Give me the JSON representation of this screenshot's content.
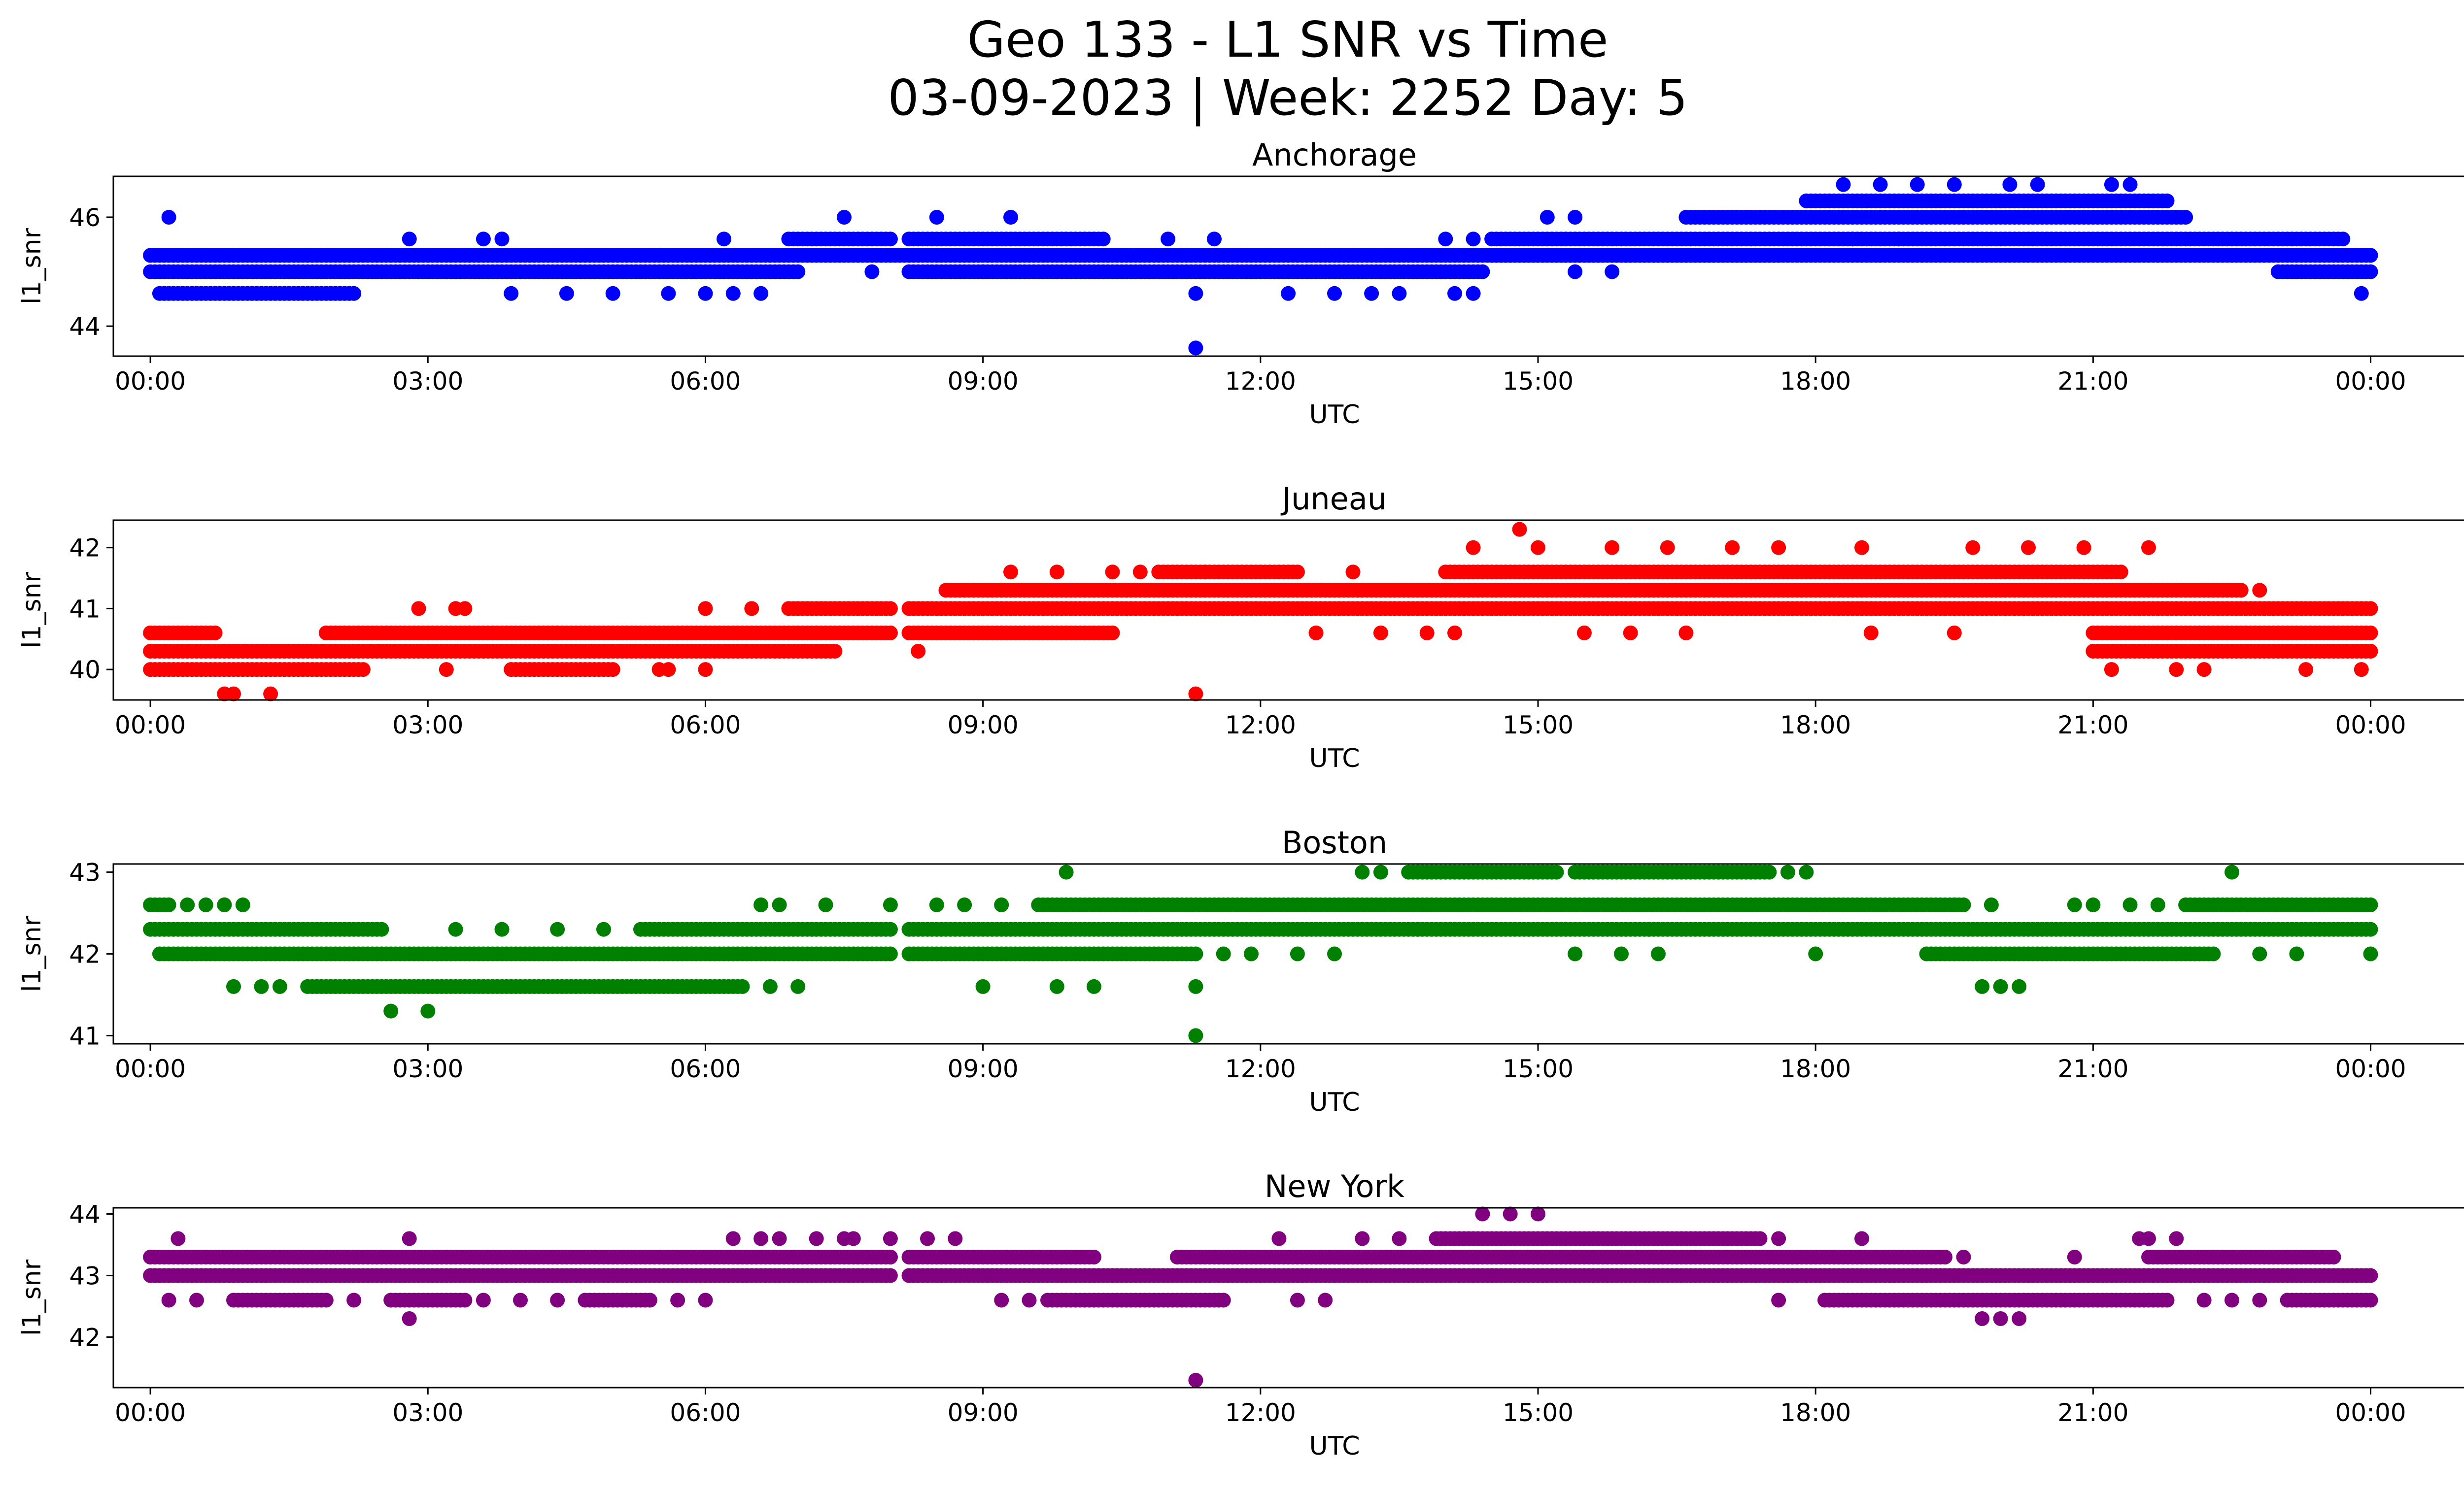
{
  "figure": {
    "title_line1": "Geo 133 - L1 SNR vs Time",
    "title_line2": "03-09-2023 | Week: 2252 Day: 5"
  },
  "chart_data": [
    {
      "type": "scatter",
      "title": "Anchorage",
      "xlabel": "UTC",
      "ylabel": "l1_snr",
      "color": "#0000ff",
      "xlim": [
        -0.4,
        26.0
      ],
      "ylim": [
        43.45,
        46.75
      ],
      "x_ticks": [
        "00:00",
        "03:00",
        "06:00",
        "09:00",
        "12:00",
        "15:00",
        "18:00",
        "21:00",
        "00:00"
      ],
      "y_ticks": [
        44,
        46
      ],
      "bands": [
        {
          "y": 45.3,
          "x_start": 0.0,
          "x_end": 24.0
        },
        {
          "y": 45.0,
          "x_start": 0.0,
          "x_end": 7.0
        },
        {
          "y": 45.0,
          "x_start": 8.2,
          "x_end": 14.4
        },
        {
          "y": 45.0,
          "x_start": 23.0,
          "x_end": 24.0
        },
        {
          "y": 44.6,
          "x_start": 0.1,
          "x_end": 2.2
        },
        {
          "y": 45.6,
          "x_start": 6.9,
          "x_end": 8.0
        },
        {
          "y": 45.6,
          "x_start": 8.2,
          "x_end": 10.3
        },
        {
          "y": 45.6,
          "x_start": 14.5,
          "x_end": 23.7
        },
        {
          "y": 45.3,
          "x_start": 14.5,
          "x_end": 17.6
        },
        {
          "y": 46.0,
          "x_start": 16.6,
          "x_end": 22.0
        },
        {
          "y": 46.3,
          "x_start": 17.9,
          "x_end": 21.8
        }
      ],
      "points": [
        [
          11.3,
          43.6
        ],
        [
          11.3,
          44.6
        ],
        [
          7.5,
          46.0
        ],
        [
          8.5,
          46.0
        ],
        [
          9.3,
          46.0
        ],
        [
          2.8,
          45.6
        ],
        [
          3.6,
          45.6
        ],
        [
          3.8,
          45.6
        ],
        [
          6.2,
          45.6
        ],
        [
          11.0,
          45.6
        ],
        [
          11.5,
          45.6
        ],
        [
          3.9,
          44.6
        ],
        [
          4.5,
          44.6
        ],
        [
          5.0,
          44.6
        ],
        [
          5.6,
          44.6
        ],
        [
          6.0,
          44.6
        ],
        [
          6.3,
          44.6
        ],
        [
          6.6,
          44.6
        ],
        [
          12.3,
          44.6
        ],
        [
          12.8,
          44.6
        ],
        [
          13.2,
          44.6
        ],
        [
          13.5,
          44.6
        ],
        [
          14.1,
          44.6
        ],
        [
          14.3,
          44.6
        ],
        [
          7.8,
          45.0
        ],
        [
          9.0,
          45.0
        ],
        [
          15.4,
          45.0
        ],
        [
          15.8,
          45.0
        ],
        [
          18.4,
          45.6
        ],
        [
          18.9,
          45.6
        ],
        [
          18.3,
          46.6
        ],
        [
          18.7,
          46.6
        ],
        [
          19.1,
          46.6
        ],
        [
          19.5,
          46.6
        ],
        [
          20.1,
          46.6
        ],
        [
          20.4,
          46.6
        ],
        [
          21.2,
          46.6
        ],
        [
          21.4,
          46.6
        ],
        [
          14.0,
          45.6
        ],
        [
          14.3,
          45.6
        ],
        [
          0.2,
          46.0
        ],
        [
          15.1,
          46.0
        ],
        [
          15.4,
          46.0
        ],
        [
          23.9,
          44.6
        ]
      ]
    },
    {
      "type": "scatter",
      "title": "Juneau",
      "xlabel": "UTC",
      "ylabel": "l1_snr",
      "color": "#ff0000",
      "xlim": [
        -0.4,
        26.0
      ],
      "ylim": [
        39.5,
        42.45
      ],
      "x_ticks": [
        "00:00",
        "03:00",
        "06:00",
        "09:00",
        "12:00",
        "15:00",
        "18:00",
        "21:00",
        "00:00"
      ],
      "y_ticks": [
        40,
        41,
        42
      ],
      "bands": [
        {
          "y": 40.3,
          "x_start": 0.0,
          "x_end": 7.4
        },
        {
          "y": 40.0,
          "x_start": 0.0,
          "x_end": 2.3
        },
        {
          "y": 40.6,
          "x_start": 0.0,
          "x_end": 0.7
        },
        {
          "y": 40.6,
          "x_start": 1.9,
          "x_end": 4.4
        },
        {
          "y": 40.6,
          "x_start": 4.2,
          "x_end": 8.0
        },
        {
          "y": 40.0,
          "x_start": 3.9,
          "x_end": 5.0
        },
        {
          "y": 41.0,
          "x_start": 6.9,
          "x_end": 8.0
        },
        {
          "y": 41.0,
          "x_start": 8.2,
          "x_end": 24.0
        },
        {
          "y": 40.6,
          "x_start": 8.2,
          "x_end": 10.4
        },
        {
          "y": 41.3,
          "x_start": 8.6,
          "x_end": 22.6
        },
        {
          "y": 41.6,
          "x_start": 10.9,
          "x_end": 12.4
        },
        {
          "y": 41.6,
          "x_start": 14.0,
          "x_end": 21.3
        },
        {
          "y": 40.6,
          "x_start": 21.0,
          "x_end": 24.0
        },
        {
          "y": 40.3,
          "x_start": 21.0,
          "x_end": 24.0
        }
      ],
      "points": [
        [
          0.8,
          39.6
        ],
        [
          0.9,
          39.6
        ],
        [
          1.3,
          39.6
        ],
        [
          11.3,
          39.6
        ],
        [
          14.8,
          42.3
        ],
        [
          2.9,
          41.0
        ],
        [
          3.3,
          41.0
        ],
        [
          3.4,
          41.0
        ],
        [
          6.0,
          41.0
        ],
        [
          6.5,
          41.0
        ],
        [
          3.2,
          40.0
        ],
        [
          5.5,
          40.0
        ],
        [
          5.6,
          40.0
        ],
        [
          6.0,
          40.0
        ],
        [
          8.3,
          40.3
        ],
        [
          9.3,
          41.6
        ],
        [
          9.8,
          41.6
        ],
        [
          10.4,
          41.6
        ],
        [
          10.7,
          41.6
        ],
        [
          13.0,
          41.6
        ],
        [
          14.3,
          42.0
        ],
        [
          15.0,
          42.0
        ],
        [
          15.8,
          42.0
        ],
        [
          16.4,
          42.0
        ],
        [
          17.1,
          42.0
        ],
        [
          17.6,
          42.0
        ],
        [
          18.5,
          42.0
        ],
        [
          19.7,
          42.0
        ],
        [
          20.3,
          42.0
        ],
        [
          20.9,
          42.0
        ],
        [
          21.6,
          42.0
        ],
        [
          12.6,
          40.6
        ],
        [
          13.3,
          40.6
        ],
        [
          13.8,
          40.6
        ],
        [
          14.1,
          40.6
        ],
        [
          15.5,
          40.6
        ],
        [
          16.0,
          40.6
        ],
        [
          16.6,
          40.6
        ],
        [
          18.6,
          40.6
        ],
        [
          19.5,
          40.6
        ],
        [
          21.2,
          40.0
        ],
        [
          21.9,
          40.0
        ],
        [
          22.2,
          40.0
        ],
        [
          23.3,
          40.0
        ],
        [
          23.9,
          40.0
        ],
        [
          22.8,
          41.3
        ],
        [
          11.4,
          41.6
        ]
      ]
    },
    {
      "type": "scatter",
      "title": "Boston",
      "xlabel": "UTC",
      "ylabel": "l1_snr",
      "color": "#008000",
      "xlim": [
        -0.4,
        26.0
      ],
      "ylim": [
        40.9,
        43.1
      ],
      "x_ticks": [
        "00:00",
        "03:00",
        "06:00",
        "09:00",
        "12:00",
        "15:00",
        "18:00",
        "21:00",
        "00:00"
      ],
      "y_ticks": [
        41,
        42,
        43
      ],
      "bands": [
        {
          "y": 42.3,
          "x_start": 0.0,
          "x_end": 2.5
        },
        {
          "y": 42.3,
          "x_start": 5.3,
          "x_end": 8.0
        },
        {
          "y": 42.0,
          "x_start": 0.1,
          "x_end": 8.0
        },
        {
          "y": 41.6,
          "x_start": 1.7,
          "x_end": 6.4
        },
        {
          "y": 42.3,
          "x_start": 8.2,
          "x_end": 24.0
        },
        {
          "y": 42.6,
          "x_start": 9.6,
          "x_end": 19.6
        },
        {
          "y": 42.6,
          "x_start": 22.0,
          "x_end": 24.0
        },
        {
          "y": 42.0,
          "x_start": 8.2,
          "x_end": 11.3
        },
        {
          "y": 42.0,
          "x_start": 19.2,
          "x_end": 22.3
        },
        {
          "y": 43.0,
          "x_start": 13.6,
          "x_end": 15.2
        },
        {
          "y": 43.0,
          "x_start": 15.4,
          "x_end": 17.5
        },
        {
          "y": 42.6,
          "x_start": 0.0,
          "x_end": 0.2
        }
      ],
      "points": [
        [
          0.4,
          42.6
        ],
        [
          0.6,
          42.6
        ],
        [
          0.8,
          42.6
        ],
        [
          1.0,
          42.6
        ],
        [
          0.8,
          42.6
        ],
        [
          2.6,
          41.3
        ],
        [
          3.0,
          41.3
        ],
        [
          0.9,
          41.6
        ],
        [
          1.2,
          41.6
        ],
        [
          1.4,
          41.6
        ],
        [
          11.3,
          41.0
        ],
        [
          11.3,
          41.6
        ],
        [
          6.7,
          41.6
        ],
        [
          7.0,
          41.6
        ],
        [
          9.0,
          41.6
        ],
        [
          9.8,
          41.6
        ],
        [
          10.2,
          41.6
        ],
        [
          9.9,
          43.0
        ],
        [
          22.5,
          43.0
        ],
        [
          13.1,
          43.0
        ],
        [
          13.3,
          43.0
        ],
        [
          17.7,
          43.0
        ],
        [
          17.9,
          43.0
        ],
        [
          6.6,
          42.6
        ],
        [
          6.8,
          42.6
        ],
        [
          7.3,
          42.6
        ],
        [
          8.0,
          42.6
        ],
        [
          8.5,
          42.6
        ],
        [
          8.8,
          42.6
        ],
        [
          9.2,
          42.6
        ],
        [
          11.6,
          42.0
        ],
        [
          11.9,
          42.0
        ],
        [
          12.4,
          42.0
        ],
        [
          12.8,
          42.0
        ],
        [
          15.4,
          42.0
        ],
        [
          15.9,
          42.0
        ],
        [
          16.3,
          42.0
        ],
        [
          18.0,
          42.0
        ],
        [
          19.8,
          41.6
        ],
        [
          20.0,
          41.6
        ],
        [
          20.2,
          41.6
        ],
        [
          19.5,
          42.6
        ],
        [
          19.9,
          42.6
        ],
        [
          20.8,
          42.6
        ],
        [
          21.0,
          42.6
        ],
        [
          21.4,
          42.6
        ],
        [
          21.7,
          42.6
        ],
        [
          22.8,
          42.0
        ],
        [
          23.2,
          42.0
        ],
        [
          3.3,
          42.3
        ],
        [
          3.8,
          42.3
        ],
        [
          4.4,
          42.3
        ],
        [
          4.9,
          42.3
        ],
        [
          13.7,
          42.3
        ],
        [
          16.2,
          42.3
        ],
        [
          17.0,
          42.3
        ],
        [
          24.0,
          42.0
        ]
      ]
    },
    {
      "type": "scatter",
      "title": "New York",
      "xlabel": "UTC",
      "ylabel": "l1_snr",
      "color": "#800080",
      "xlim": [
        -0.4,
        26.0
      ],
      "ylim": [
        41.18,
        44.1
      ],
      "x_ticks": [
        "00:00",
        "03:00",
        "06:00",
        "09:00",
        "12:00",
        "15:00",
        "18:00",
        "21:00",
        "00:00"
      ],
      "y_ticks": [
        42,
        43,
        44
      ],
      "bands": [
        {
          "y": 43.0,
          "x_start": 0.0,
          "x_end": 8.0
        },
        {
          "y": 43.0,
          "x_start": 8.2,
          "x_end": 24.0
        },
        {
          "y": 43.3,
          "x_start": 0.0,
          "x_end": 8.0
        },
        {
          "y": 43.3,
          "x_start": 8.2,
          "x_end": 10.2
        },
        {
          "y": 43.3,
          "x_start": 11.1,
          "x_end": 13.4
        },
        {
          "y": 43.3,
          "x_start": 12.6,
          "x_end": 19.4
        },
        {
          "y": 43.3,
          "x_start": 21.6,
          "x_end": 23.6
        },
        {
          "y": 43.6,
          "x_start": 13.9,
          "x_end": 17.4
        },
        {
          "y": 42.6,
          "x_start": 0.9,
          "x_end": 1.9
        },
        {
          "y": 42.6,
          "x_start": 2.6,
          "x_end": 3.4
        },
        {
          "y": 42.6,
          "x_start": 4.7,
          "x_end": 5.4
        },
        {
          "y": 42.6,
          "x_start": 9.7,
          "x_end": 11.6
        },
        {
          "y": 42.6,
          "x_start": 18.1,
          "x_end": 21.8
        },
        {
          "y": 42.6,
          "x_start": 23.1,
          "x_end": 24.0
        }
      ],
      "points": [
        [
          11.3,
          41.3
        ],
        [
          2.8,
          42.3
        ],
        [
          19.8,
          42.3
        ],
        [
          20.0,
          42.3
        ],
        [
          20.2,
          42.3
        ],
        [
          0.3,
          43.6
        ],
        [
          2.8,
          43.6
        ],
        [
          6.3,
          43.6
        ],
        [
          6.6,
          43.6
        ],
        [
          6.8,
          43.6
        ],
        [
          7.2,
          43.6
        ],
        [
          7.5,
          43.6
        ],
        [
          7.6,
          43.6
        ],
        [
          8.0,
          43.6
        ],
        [
          8.4,
          43.6
        ],
        [
          8.7,
          43.6
        ],
        [
          12.2,
          43.6
        ],
        [
          13.1,
          43.6
        ],
        [
          13.5,
          43.6
        ],
        [
          17.6,
          43.6
        ],
        [
          18.5,
          43.6
        ],
        [
          21.5,
          43.6
        ],
        [
          21.6,
          43.6
        ],
        [
          21.9,
          43.6
        ],
        [
          14.4,
          44.0
        ],
        [
          14.7,
          44.0
        ],
        [
          15.0,
          44.0
        ],
        [
          0.2,
          42.6
        ],
        [
          0.5,
          42.6
        ],
        [
          2.2,
          42.6
        ],
        [
          3.6,
          42.6
        ],
        [
          4.0,
          42.6
        ],
        [
          4.4,
          42.6
        ],
        [
          5.7,
          42.6
        ],
        [
          6.0,
          42.6
        ],
        [
          9.2,
          42.6
        ],
        [
          9.5,
          42.6
        ],
        [
          12.4,
          42.6
        ],
        [
          12.7,
          42.6
        ],
        [
          17.6,
          42.6
        ],
        [
          22.2,
          42.6
        ],
        [
          22.5,
          42.6
        ],
        [
          22.8,
          42.6
        ],
        [
          14.5,
          43.0
        ],
        [
          20.8,
          43.3
        ],
        [
          19.6,
          43.3
        ],
        [
          8.0,
          43.3
        ]
      ]
    }
  ]
}
